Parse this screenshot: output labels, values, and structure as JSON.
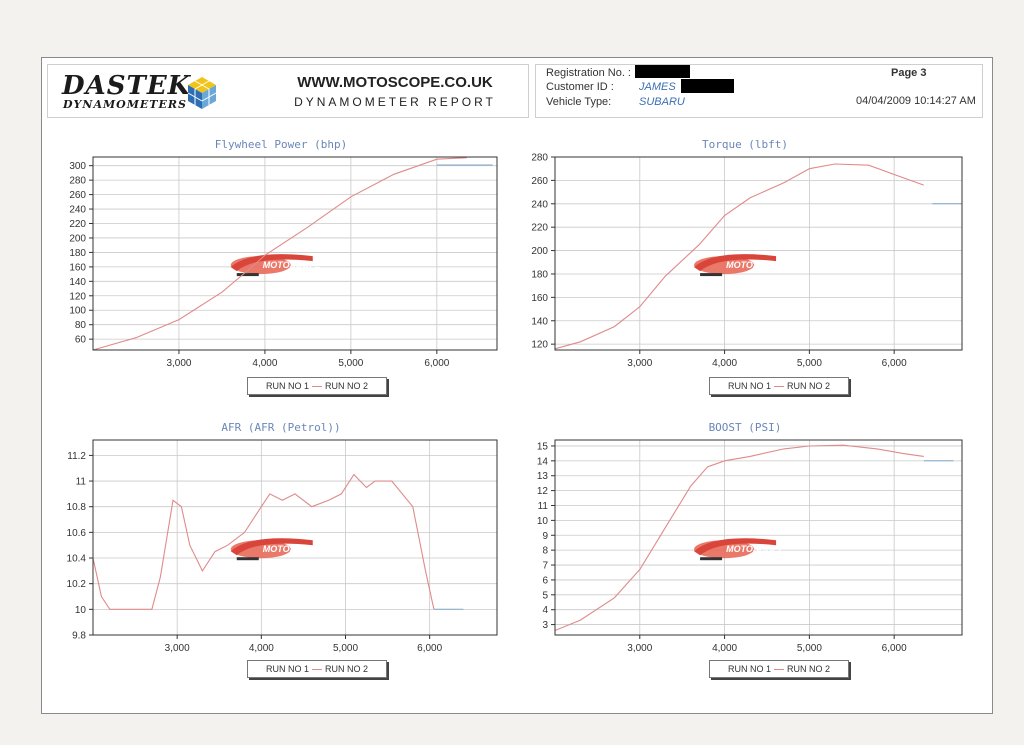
{
  "header": {
    "logo_word": "DASTEK",
    "logo_sub": "DYNAMOMETERS",
    "site_url": "WWW.MOTOSCOPE.CO.UK",
    "report_title": "DYNAMOMETER REPORT",
    "registration_label": "Registration No. :",
    "customer_label": "Customer ID :",
    "customer_value": "JAMES",
    "vehicle_label": "Vehicle Type:",
    "vehicle_value": "SUBARU",
    "page_label": "Page 3",
    "date": "04/04/2009 10:14:27 AM"
  },
  "watermark": "MOTOSCOPE",
  "colors": {
    "run1": "#e08a8a",
    "run2": "#7fa6c9",
    "grid": "#c9c9c9",
    "title": "#6b86b8"
  },
  "chart_data": [
    {
      "id": "power",
      "type": "line",
      "title": "Flywheel Power (bhp)",
      "xlim": [
        2000,
        6700
      ],
      "ylim": [
        45,
        312
      ],
      "x_ticks": [
        3000,
        4000,
        5000,
        6000
      ],
      "x_tick_labels": [
        "3,000",
        "4,000",
        "5,000",
        "6,000"
      ],
      "y_ticks": [
        60,
        80,
        100,
        120,
        140,
        160,
        180,
        200,
        220,
        240,
        260,
        280,
        300
      ],
      "y_tick_labels": [
        "60",
        "80",
        "100",
        "120",
        "140",
        "160",
        "180",
        "200",
        "220",
        "240",
        "260",
        "280",
        "300"
      ],
      "legend": [
        "RUN NO 1",
        "RUN NO 2"
      ],
      "series": [
        {
          "name": "RUN NO 1",
          "x": [
            2000,
            2500,
            3000,
            3500,
            3800,
            4000,
            4500,
            5000,
            5500,
            6000,
            6350
          ],
          "y": [
            45,
            62,
            87,
            125,
            155,
            176,
            215,
            257,
            288,
            309,
            311
          ]
        },
        {
          "name": "RUN NO 2",
          "x": [
            6000,
            6650
          ],
          "y": [
            301,
            301
          ]
        }
      ]
    },
    {
      "id": "torque",
      "type": "line",
      "title": "Torque (lbft)",
      "xlim": [
        2000,
        6800
      ],
      "ylim": [
        115,
        280
      ],
      "x_ticks": [
        3000,
        4000,
        5000,
        6000
      ],
      "x_tick_labels": [
        "3,000",
        "4,000",
        "5,000",
        "6,000"
      ],
      "y_ticks": [
        120,
        140,
        160,
        180,
        200,
        220,
        240,
        260,
        280
      ],
      "y_tick_labels": [
        "120",
        "140",
        "160",
        "180",
        "200",
        "220",
        "240",
        "260",
        "280"
      ],
      "legend": [
        "RUN NO 1",
        "RUN NO 2"
      ],
      "series": [
        {
          "name": "RUN NO 1",
          "x": [
            2000,
            2300,
            2700,
            3000,
            3300,
            3700,
            4000,
            4300,
            4700,
            5000,
            5300,
            5700,
            6000,
            6350
          ],
          "y": [
            116,
            122,
            135,
            152,
            178,
            205,
            230,
            245,
            258,
            270,
            274,
            273,
            265,
            256
          ]
        },
        {
          "name": "RUN NO 2",
          "x": [
            6450,
            6800
          ],
          "y": [
            240,
            240
          ]
        }
      ]
    },
    {
      "id": "afr",
      "type": "line",
      "title": "AFR (AFR (Petrol))",
      "xlim": [
        2000,
        6800
      ],
      "ylim": [
        9.8,
        11.32
      ],
      "x_ticks": [
        3000,
        4000,
        5000,
        6000
      ],
      "x_tick_labels": [
        "3,000",
        "4,000",
        "5,000",
        "6,000"
      ],
      "y_ticks": [
        9.8,
        10,
        10.2,
        10.4,
        10.6,
        10.8,
        11,
        11.2
      ],
      "y_tick_labels": [
        "9.8",
        "10",
        "10.2",
        "10.4",
        "10.6",
        "10.8",
        "11",
        "11.2"
      ],
      "legend": [
        "RUN NO 1",
        "RUN NO 2"
      ],
      "series": [
        {
          "name": "RUN NO 1",
          "x": [
            2000,
            2100,
            2200,
            2400,
            2700,
            2800,
            2950,
            3050,
            3150,
            3300,
            3450,
            3600,
            3800,
            4000,
            4100,
            4250,
            4400,
            4600,
            4800,
            4950,
            5100,
            5250,
            5350,
            5550,
            5800,
            5950,
            6050
          ],
          "y": [
            10.4,
            10.1,
            10.0,
            10.0,
            10.0,
            10.25,
            10.85,
            10.8,
            10.5,
            10.3,
            10.45,
            10.5,
            10.6,
            10.8,
            10.9,
            10.85,
            10.9,
            10.8,
            10.85,
            10.9,
            11.05,
            10.95,
            11.0,
            11.0,
            10.8,
            10.3,
            10.0
          ]
        },
        {
          "name": "RUN NO 2",
          "x": [
            6050,
            6400
          ],
          "y": [
            10.0,
            10.0
          ]
        }
      ]
    },
    {
      "id": "boost",
      "type": "line",
      "title": "BOOST (PSI)",
      "xlim": [
        2000,
        6800
      ],
      "ylim": [
        2.3,
        15.4
      ],
      "x_ticks": [
        3000,
        4000,
        5000,
        6000
      ],
      "x_tick_labels": [
        "3,000",
        "4,000",
        "5,000",
        "6,000"
      ],
      "y_ticks": [
        3,
        4,
        5,
        6,
        7,
        8,
        9,
        10,
        11,
        12,
        13,
        14,
        15
      ],
      "y_tick_labels": [
        "3",
        "4",
        "5",
        "6",
        "7",
        "8",
        "9",
        "10",
        "11",
        "12",
        "13",
        "14",
        "15"
      ],
      "legend": [
        "RUN NO 1",
        "RUN NO 2"
      ],
      "series": [
        {
          "name": "RUN NO 1",
          "x": [
            2000,
            2300,
            2700,
            3000,
            3300,
            3600,
            3800,
            4000,
            4300,
            4700,
            5000,
            5400,
            5800,
            6100,
            6350
          ],
          "y": [
            2.6,
            3.3,
            4.8,
            6.7,
            9.5,
            12.3,
            13.6,
            14.0,
            14.3,
            14.8,
            15.0,
            15.05,
            14.8,
            14.5,
            14.3
          ]
        },
        {
          "name": "RUN NO 2",
          "x": [
            6350,
            6700
          ],
          "y": [
            14.0,
            14.0
          ]
        }
      ]
    }
  ]
}
